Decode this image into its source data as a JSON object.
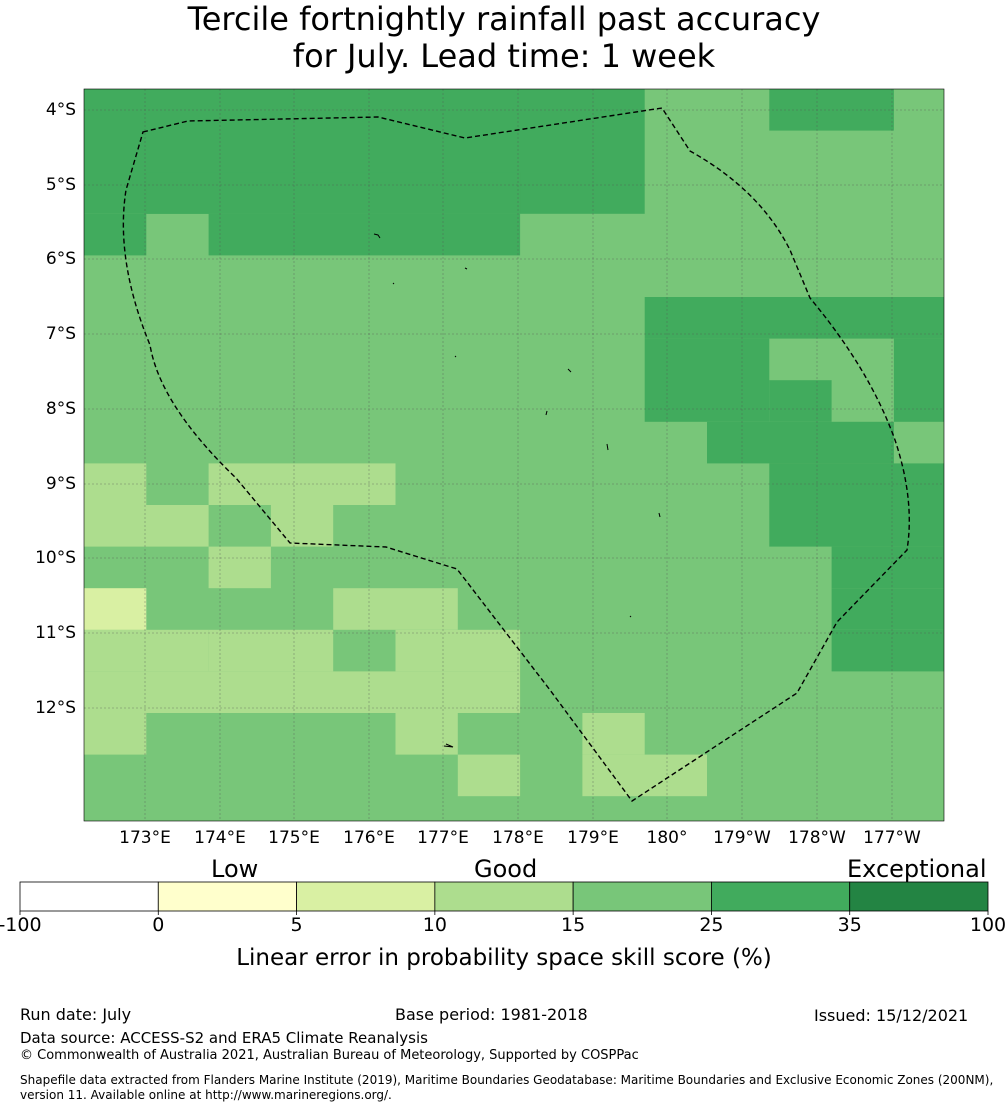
{
  "title_line1": "Tercile fortnightly rainfall past accuracy",
  "title_line2": "for July. Lead time: 1 week",
  "lat_labels": [
    "4°S",
    "5°S",
    "6°S",
    "7°S",
    "8°S",
    "9°S",
    "10°S",
    "11°S",
    "12°S"
  ],
  "lon_labels": [
    "173°E",
    "174°E",
    "175°E",
    "176°E",
    "177°E",
    "178°E",
    "179°E",
    "180°",
    "179°W",
    "178°W",
    "177°W"
  ],
  "colorbar": {
    "categories": [
      "Low",
      "Good",
      "Exceptional"
    ],
    "ticks": [
      "-100",
      "0",
      "5",
      "10",
      "15",
      "25",
      "35",
      "100"
    ],
    "colors": [
      "#ffffff",
      "#ffffcc",
      "#d9f0a3",
      "#addd8e",
      "#78c679",
      "#41ab5d",
      "#238443"
    ],
    "title": "Linear error in probability space skill score (%)"
  },
  "palette": {
    "c15": "#78c679",
    "c25": "#41ab5d",
    "c10": "#addd8e",
    "c5": "#d9f0a3"
  },
  "footer": {
    "run_date": "Run date: July",
    "base_period": "Base period: 1981-2018",
    "issued": "Issued: 15/12/2021",
    "data_source": "Data source: ACCESS-S2 and ERA5 Climate Reanalysis",
    "copyright": "© Commonwealth of Australia 2021, Australian Bureau of Meteorology, Supported by COSPPac",
    "shapefile_line1": "Shapefile data extracted from Flanders Marine Institute (2019), Maritime Boundaries Geodatabase: Maritime Boundaries and Exclusive Economic Zones (200NM),",
    "shapefile_line2": "version 11. Available online at http://www.marineregions.org/."
  }
}
